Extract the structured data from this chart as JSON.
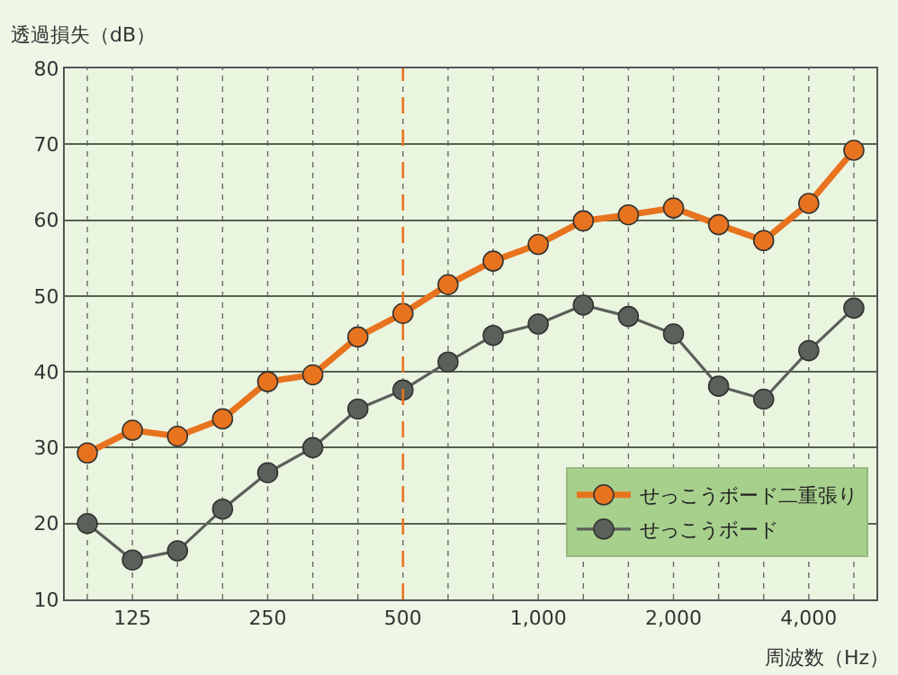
{
  "chart_data": {
    "type": "line",
    "ylabel": "透過損失（dB）",
    "xlabel": "周波数（Hz）",
    "categories": [
      null,
      "125",
      null,
      null,
      "250",
      null,
      null,
      "500",
      null,
      null,
      "1,000",
      null,
      null,
      "2,000",
      null,
      null,
      "4,000",
      null
    ],
    "series": [
      {
        "name": "せっこうボード二重張り",
        "color": "#e8731e",
        "values": [
          29.3,
          32.3,
          31.5,
          33.8,
          38.7,
          39.6,
          44.6,
          47.7,
          51.5,
          54.6,
          56.8,
          59.9,
          60.7,
          61.6,
          59.4,
          57.3,
          62.2,
          69.2
        ]
      },
      {
        "name": "せっこうボード",
        "color": "#5a605a",
        "values": [
          20,
          15.2,
          16.4,
          21.9,
          26.7,
          30,
          35.1,
          37.6,
          41.3,
          44.8,
          46.3,
          48.8,
          47.3,
          45,
          38.1,
          36.4,
          42.8,
          48.4
        ]
      }
    ],
    "ylim": [
      10,
      80
    ],
    "yticks": [
      10,
      20,
      30,
      40,
      50,
      60,
      70,
      80
    ],
    "grid": true,
    "legend": "bottom right",
    "marker": "circle",
    "line_style": "solid",
    "ref_lines": [
      {
        "axis": "x",
        "value": "500",
        "color": "#e8731e",
        "line_style": "dashed"
      }
    ]
  }
}
